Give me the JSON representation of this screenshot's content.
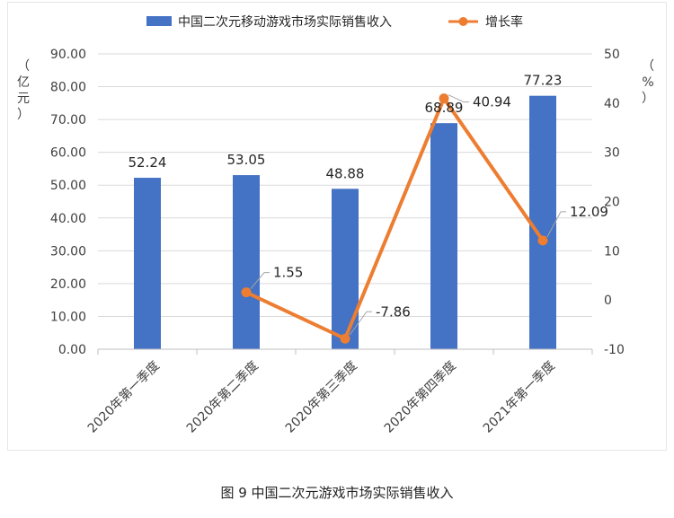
{
  "caption": "图 9  中国二次元游戏市场实际销售收入",
  "colors": {
    "bar": "#4472C4",
    "line": "#ED7D31",
    "grid": "#d9d9d9",
    "axis": "#bfbfbf"
  },
  "chart_data": {
    "type": "bar",
    "categories": [
      "2020年第一季度",
      "2020年第二季度",
      "2020年第三季度",
      "2020年第四季度",
      "2021年第一季度"
    ],
    "series": [
      {
        "name": "中国二次元移动游戏市场实际销售收入",
        "kind": "bar",
        "axis": "left",
        "values": [
          52.24,
          53.05,
          48.88,
          68.89,
          77.23
        ],
        "labels": [
          "52.24",
          "53.05",
          "48.88",
          "68.89",
          "77.23"
        ]
      },
      {
        "name": "增长率",
        "kind": "line",
        "axis": "right",
        "values": [
          null,
          1.55,
          -7.86,
          40.94,
          12.09
        ],
        "labels": [
          "",
          "1.55",
          "-7.86",
          "40.94",
          "12.09"
        ]
      }
    ],
    "ylabel_left": [
      "（",
      "亿",
      "元",
      "）"
    ],
    "ylabel_right": [
      "（",
      "%",
      "）"
    ],
    "ylim_left": [
      0,
      90
    ],
    "ylim_right": [
      -10,
      50
    ],
    "yticks_left": [
      "0.00",
      "10.00",
      "20.00",
      "30.00",
      "40.00",
      "50.00",
      "60.00",
      "70.00",
      "80.00",
      "90.00"
    ],
    "yticks_right": [
      "-10",
      "0",
      "10",
      "20",
      "30",
      "40",
      "50"
    ],
    "legend_position": "top",
    "grid": "horizontal"
  }
}
